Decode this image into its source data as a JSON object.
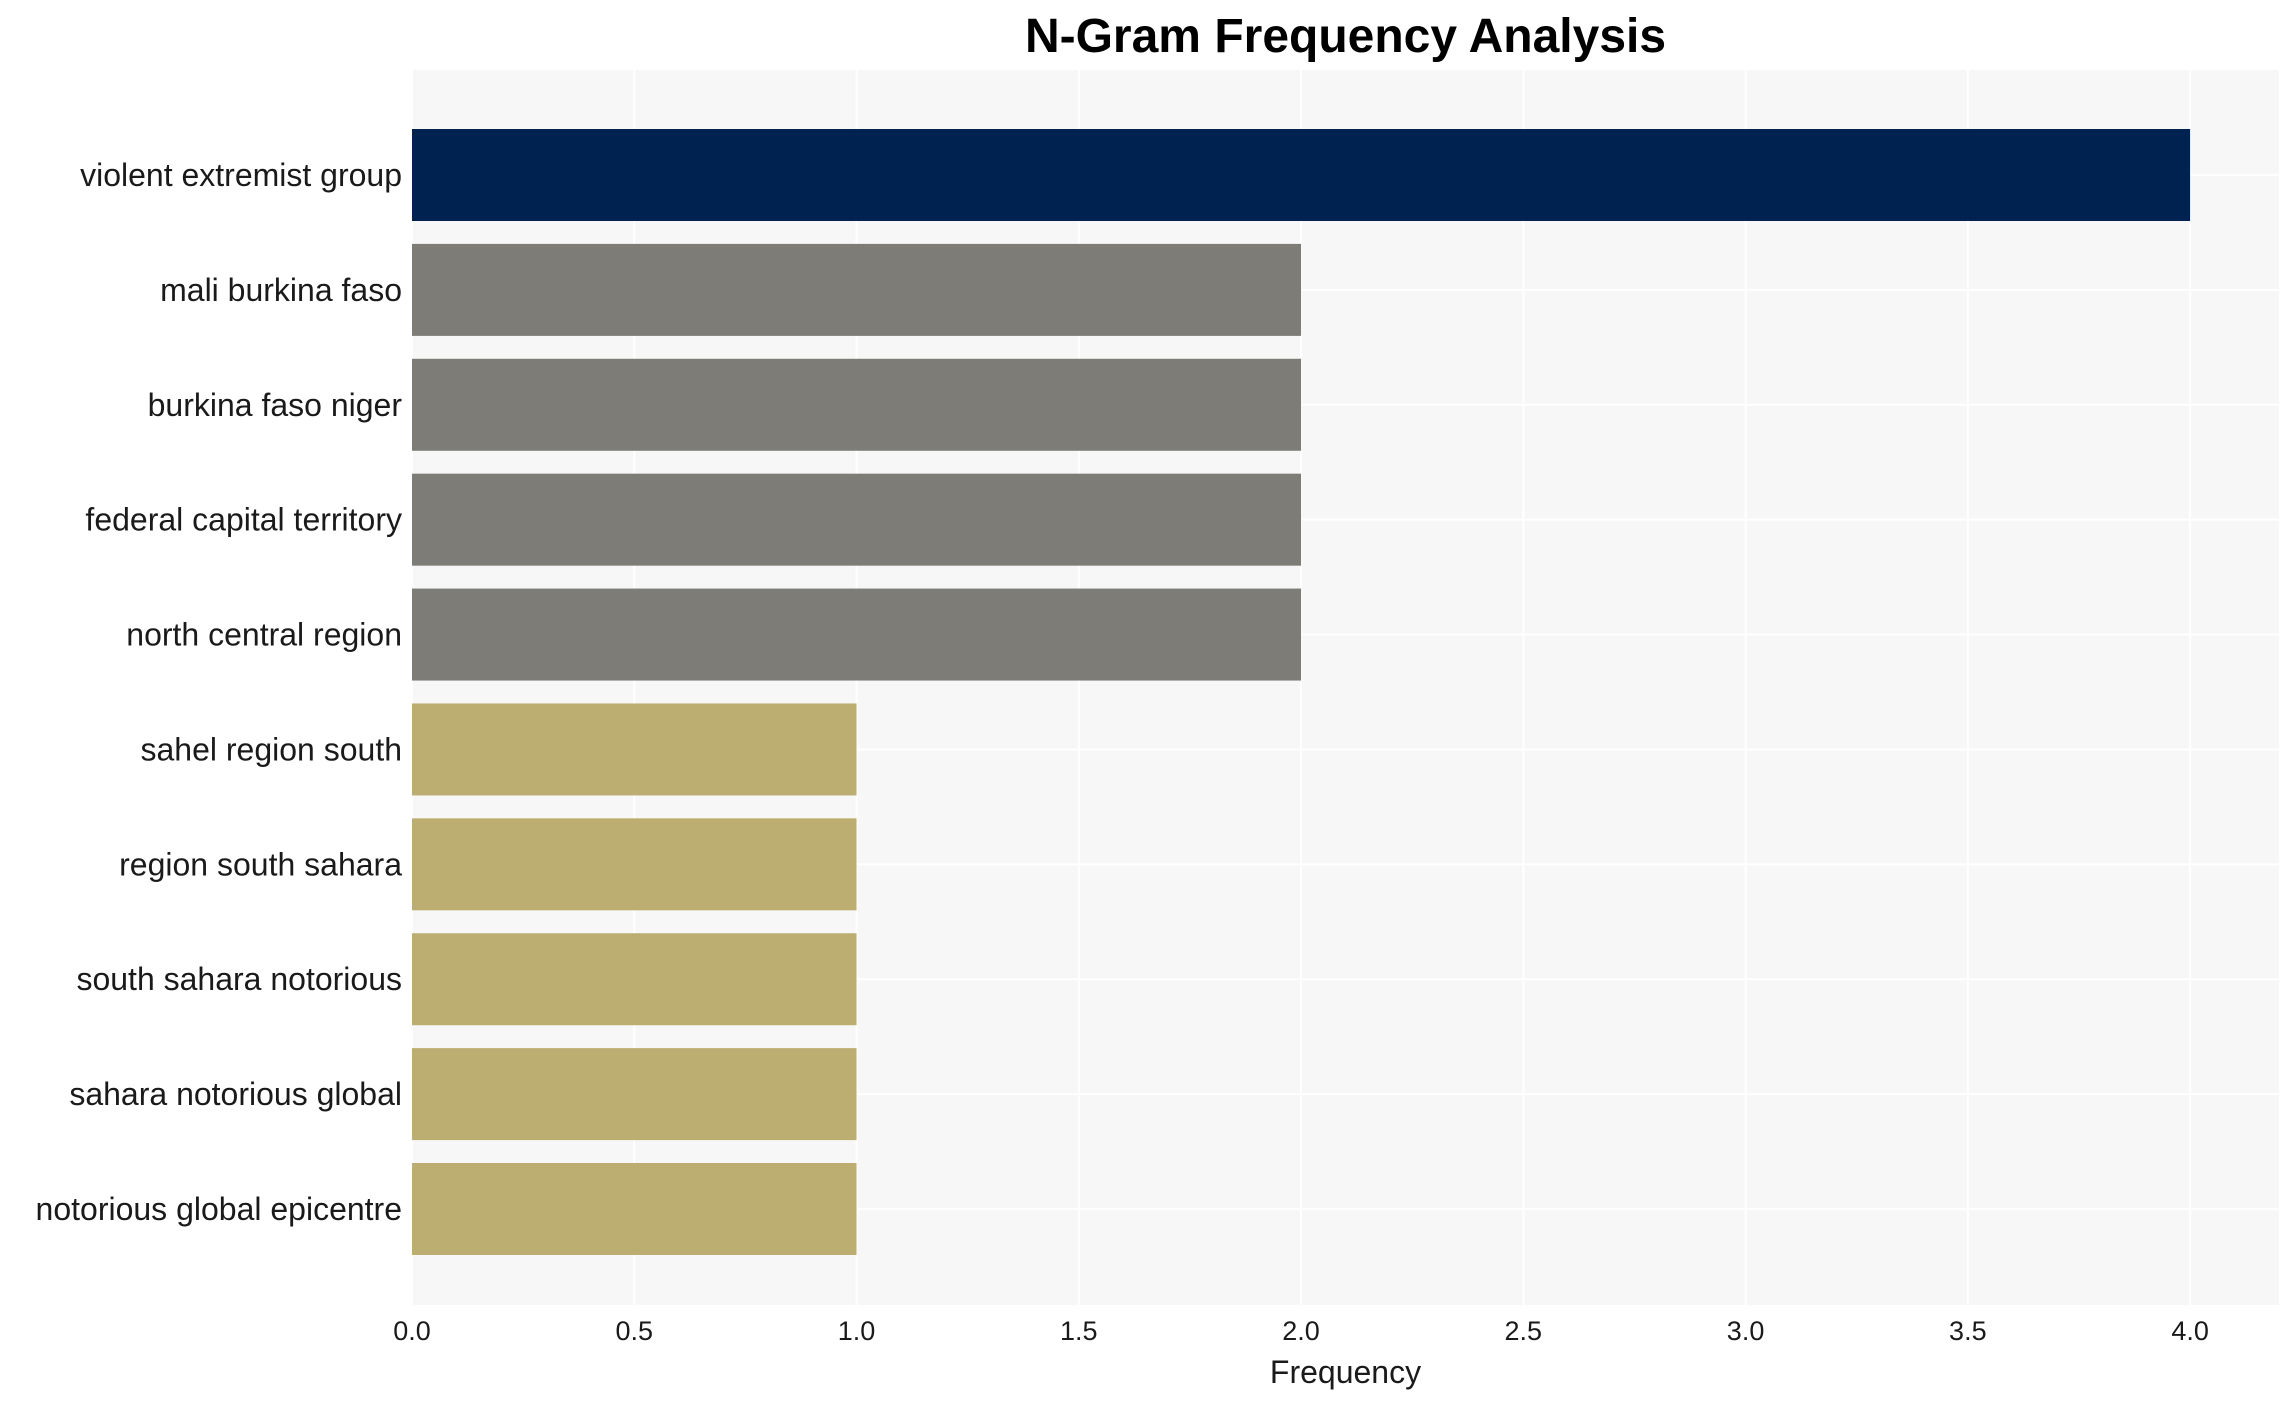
{
  "chart_data": {
    "type": "bar",
    "orientation": "horizontal",
    "title": "N-Gram Frequency Analysis",
    "xlabel": "Frequency",
    "ylabel": "",
    "xlim": [
      0,
      4.2
    ],
    "xticks": [
      "0.0",
      "0.5",
      "1.0",
      "1.5",
      "2.0",
      "2.5",
      "3.0",
      "3.5",
      "4.0"
    ],
    "categories": [
      "violent extremist group",
      "mali burkina faso",
      "burkina faso niger",
      "federal capital territory",
      "north central region",
      "sahel region south",
      "region south sahara",
      "south sahara notorious",
      "sahara notorious global",
      "notorious global epicentre"
    ],
    "values": [
      4,
      2,
      2,
      2,
      2,
      1,
      1,
      1,
      1,
      1
    ],
    "bar_colors": [
      "#002250",
      "#7d7c77",
      "#7d7c77",
      "#7d7c77",
      "#7d7c77",
      "#bcae70",
      "#bcae70",
      "#bcae70",
      "#bcae70",
      "#bcae70"
    ],
    "plot_background": "#f7f7f7",
    "grid": true,
    "grid_color": "#ffffff",
    "legend": "none"
  }
}
